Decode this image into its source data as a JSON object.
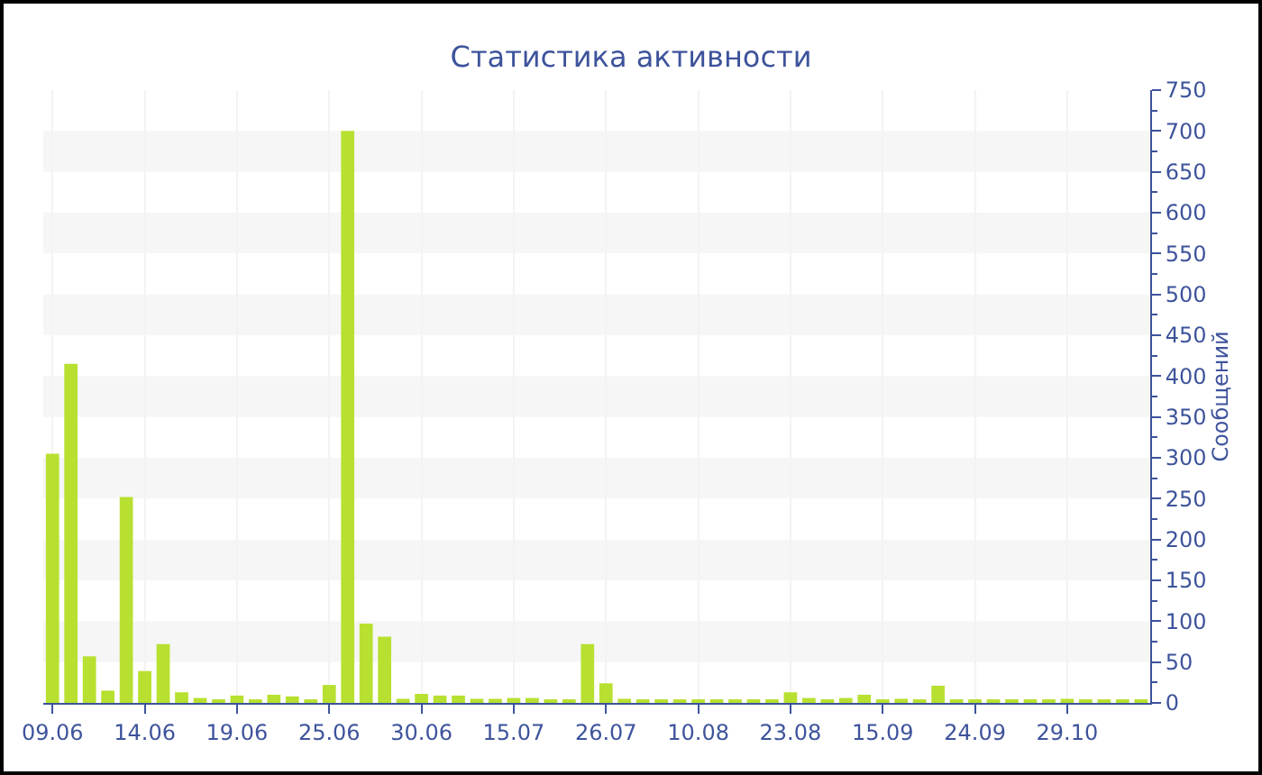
{
  "chart_data": {
    "type": "bar",
    "title": "Статистика активности",
    "ylabel": "Сообщений",
    "categories": [
      "09.06",
      null,
      null,
      null,
      null,
      "14.06",
      null,
      null,
      null,
      null,
      "19.06",
      null,
      null,
      null,
      null,
      "25.06",
      null,
      null,
      null,
      null,
      "30.06",
      null,
      null,
      null,
      null,
      "15.07",
      null,
      null,
      null,
      null,
      "26.07",
      null,
      null,
      null,
      null,
      "10.08",
      null,
      null,
      null,
      null,
      "23.08",
      null,
      null,
      null,
      null,
      "15.09",
      null,
      null,
      null,
      null,
      "24.09",
      null,
      null,
      null,
      null,
      "29.10",
      null,
      null,
      null,
      null
    ],
    "values": [
      305,
      415,
      57,
      15,
      252,
      39,
      72,
      13,
      6,
      4,
      9,
      4,
      10,
      8,
      3,
      22,
      700,
      97,
      81,
      5,
      11,
      9,
      9,
      5,
      5,
      6,
      6,
      4,
      4,
      72,
      24,
      5,
      3,
      3,
      3,
      4,
      3,
      3,
      3,
      3,
      13,
      6,
      3,
      6,
      10,
      3,
      5,
      3,
      21,
      3,
      3,
      3,
      4,
      3,
      3,
      5,
      3,
      3,
      3,
      3
    ],
    "color": "#b8e030",
    "ylim": [
      0,
      750
    ],
    "yticks": [
      0,
      50,
      100,
      150,
      200,
      250,
      300,
      350,
      400,
      450,
      500,
      550,
      600,
      650,
      700,
      750
    ],
    "grid": true
  }
}
